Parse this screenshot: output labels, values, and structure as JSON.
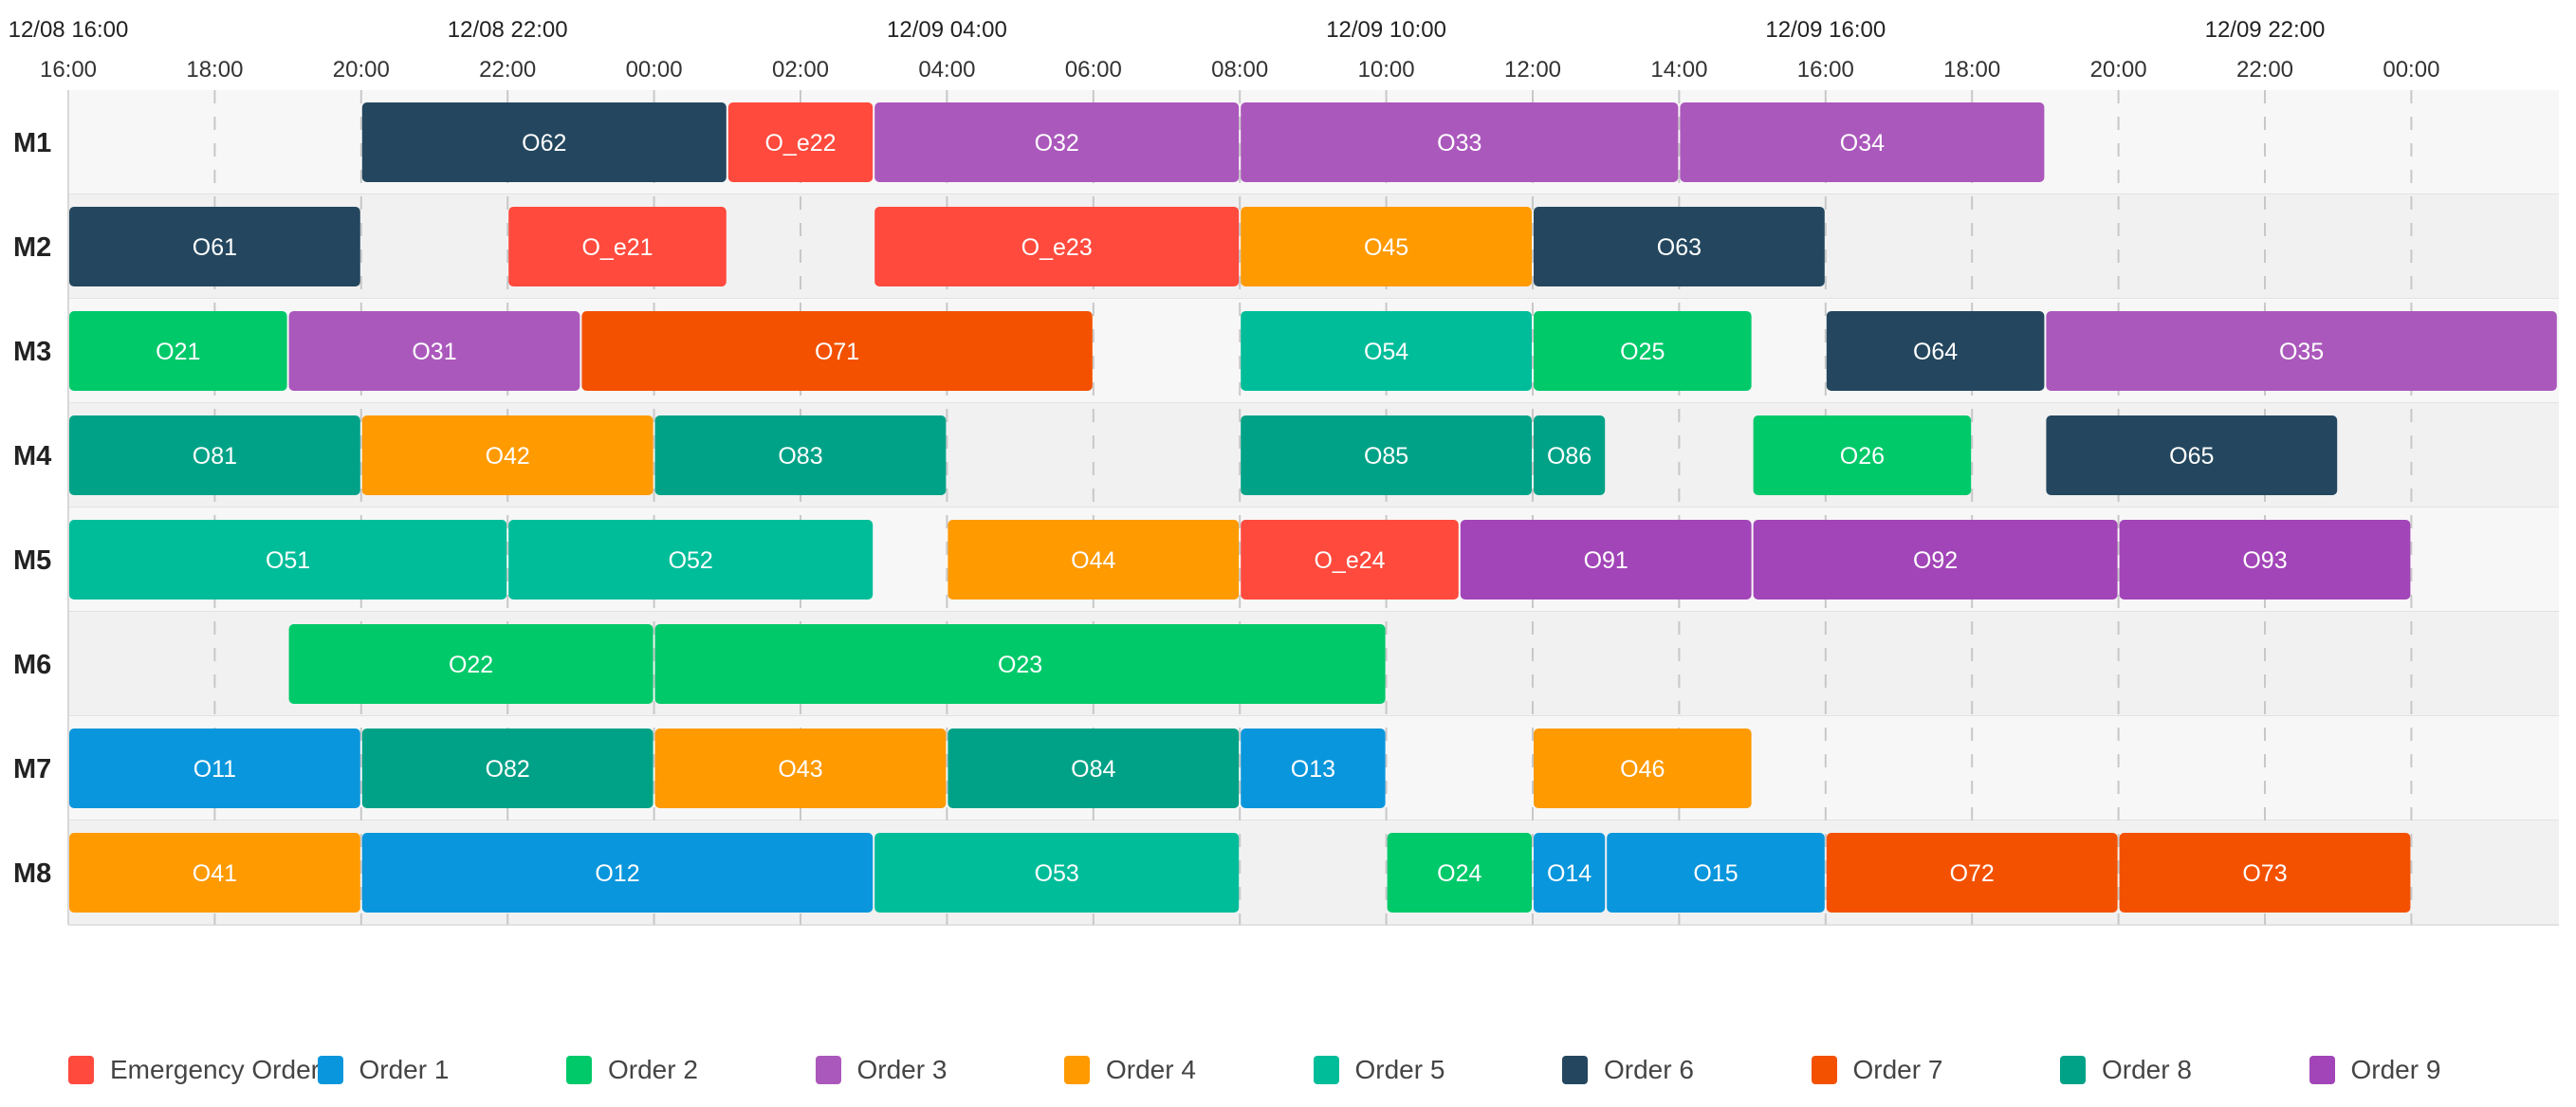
{
  "chart_data": {
    "type": "gantt",
    "time_axis": {
      "start": "12/08 16:00",
      "end": "12/10 01:00",
      "minor_tick_hours": 2,
      "major_tick_hours": 6,
      "major_labels": [
        "12/08 16:00",
        "12/08 22:00",
        "12/09 04:00",
        "12/09 10:00",
        "12/09 16:00",
        "12/09 22:00"
      ],
      "minor_labels": [
        "16:00",
        "18:00",
        "20:00",
        "22:00",
        "00:00",
        "02:00",
        "04:00",
        "06:00",
        "08:00",
        "10:00",
        "12:00",
        "14:00",
        "16:00",
        "18:00",
        "20:00",
        "22:00",
        "00:00"
      ]
    },
    "machines": [
      "M1",
      "M2",
      "M3",
      "M4",
      "M5",
      "M6",
      "M7",
      "M8"
    ],
    "categories": [
      {
        "key": "E",
        "name": "Emergency Order",
        "color": "#ff4a3d"
      },
      {
        "key": "1",
        "name": "Order 1",
        "color": "#0a96dc"
      },
      {
        "key": "2",
        "name": "Order 2",
        "color": "#00c96a"
      },
      {
        "key": "3",
        "name": "Order 3",
        "color": "#ab58bc"
      },
      {
        "key": "4",
        "name": "Order 4",
        "color": "#ff9a00"
      },
      {
        "key": "5",
        "name": "Order 5",
        "color": "#00bd9a"
      },
      {
        "key": "6",
        "name": "Order 6",
        "color": "#24475f"
      },
      {
        "key": "7",
        "name": "Order 7",
        "color": "#f35100"
      },
      {
        "key": "8",
        "name": "Order 8",
        "color": "#00a287"
      },
      {
        "key": "9",
        "name": "Order 9",
        "color": "#a245b8"
      }
    ],
    "tasks": [
      {
        "machine": "M1",
        "label": "O62",
        "order": "6",
        "start": "12/08 20:00",
        "end": "12/09 01:00"
      },
      {
        "machine": "M1",
        "label": "O_e22",
        "order": "E",
        "start": "12/09 01:00",
        "end": "12/09 03:00"
      },
      {
        "machine": "M1",
        "label": "O32",
        "order": "3",
        "start": "12/09 03:00",
        "end": "12/09 08:00"
      },
      {
        "machine": "M1",
        "label": "O33",
        "order": "3",
        "start": "12/09 08:00",
        "end": "12/09 14:00"
      },
      {
        "machine": "M1",
        "label": "O34",
        "order": "3",
        "start": "12/09 14:00",
        "end": "12/09 19:00"
      },
      {
        "machine": "M2",
        "label": "O61",
        "order": "6",
        "start": "12/08 16:00",
        "end": "12/08 20:00"
      },
      {
        "machine": "M2",
        "label": "O_e21",
        "order": "E",
        "start": "12/08 22:00",
        "end": "12/09 01:00"
      },
      {
        "machine": "M2",
        "label": "O_e23",
        "order": "E",
        "start": "12/09 03:00",
        "end": "12/09 08:00"
      },
      {
        "machine": "M2",
        "label": "O45",
        "order": "4",
        "start": "12/09 08:00",
        "end": "12/09 12:00"
      },
      {
        "machine": "M2",
        "label": "O63",
        "order": "6",
        "start": "12/09 12:00",
        "end": "12/09 16:00"
      },
      {
        "machine": "M3",
        "label": "O21",
        "order": "2",
        "start": "12/08 16:00",
        "end": "12/08 19:00"
      },
      {
        "machine": "M3",
        "label": "O31",
        "order": "3",
        "start": "12/08 19:00",
        "end": "12/08 23:00"
      },
      {
        "machine": "M3",
        "label": "O71",
        "order": "7",
        "start": "12/08 23:00",
        "end": "12/09 06:00"
      },
      {
        "machine": "M3",
        "label": "O54",
        "order": "5",
        "start": "12/09 08:00",
        "end": "12/09 12:00"
      },
      {
        "machine": "M3",
        "label": "O25",
        "order": "2",
        "start": "12/09 12:00",
        "end": "12/09 15:00"
      },
      {
        "machine": "M3",
        "label": "O64",
        "order": "6",
        "start": "12/09 16:00",
        "end": "12/09 19:00"
      },
      {
        "machine": "M3",
        "label": "O35",
        "order": "3",
        "start": "12/09 19:00",
        "end": "12/10 02:00"
      },
      {
        "machine": "M4",
        "label": "O81",
        "order": "8",
        "start": "12/08 16:00",
        "end": "12/08 20:00"
      },
      {
        "machine": "M4",
        "label": "O42",
        "order": "4",
        "start": "12/08 20:00",
        "end": "12/09 00:00"
      },
      {
        "machine": "M4",
        "label": "O83",
        "order": "8",
        "start": "12/09 00:00",
        "end": "12/09 04:00"
      },
      {
        "machine": "M4",
        "label": "O85",
        "order": "8",
        "start": "12/09 08:00",
        "end": "12/09 12:00"
      },
      {
        "machine": "M4",
        "label": "O86",
        "order": "8",
        "start": "12/09 12:00",
        "end": "12/09 13:00"
      },
      {
        "machine": "M4",
        "label": "O26",
        "order": "2",
        "start": "12/09 15:00",
        "end": "12/09 18:00"
      },
      {
        "machine": "M4",
        "label": "O65",
        "order": "6",
        "start": "12/09 19:00",
        "end": "12/09 23:00"
      },
      {
        "machine": "M5",
        "label": "O51",
        "order": "5",
        "start": "12/08 16:00",
        "end": "12/08 22:00"
      },
      {
        "machine": "M5",
        "label": "O52",
        "order": "5",
        "start": "12/08 22:00",
        "end": "12/09 03:00"
      },
      {
        "machine": "M5",
        "label": "O44",
        "order": "4",
        "start": "12/09 04:00",
        "end": "12/09 08:00"
      },
      {
        "machine": "M5",
        "label": "O_e24",
        "order": "E",
        "start": "12/09 08:00",
        "end": "12/09 11:00"
      },
      {
        "machine": "M5",
        "label": "O91",
        "order": "9",
        "start": "12/09 11:00",
        "end": "12/09 15:00"
      },
      {
        "machine": "M5",
        "label": "O92",
        "order": "9",
        "start": "12/09 15:00",
        "end": "12/09 20:00"
      },
      {
        "machine": "M5",
        "label": "O93",
        "order": "9",
        "start": "12/09 20:00",
        "end": "12/10 00:00"
      },
      {
        "machine": "M6",
        "label": "O22",
        "order": "2",
        "start": "12/08 19:00",
        "end": "12/09 00:00"
      },
      {
        "machine": "M6",
        "label": "O23",
        "order": "2",
        "start": "12/09 00:00",
        "end": "12/09 10:00"
      },
      {
        "machine": "M7",
        "label": "O11",
        "order": "1",
        "start": "12/08 16:00",
        "end": "12/08 20:00"
      },
      {
        "machine": "M7",
        "label": "O82",
        "order": "8",
        "start": "12/08 20:00",
        "end": "12/09 00:00"
      },
      {
        "machine": "M7",
        "label": "O43",
        "order": "4",
        "start": "12/09 00:00",
        "end": "12/09 04:00"
      },
      {
        "machine": "M7",
        "label": "O84",
        "order": "8",
        "start": "12/09 04:00",
        "end": "12/09 08:00"
      },
      {
        "machine": "M7",
        "label": "O13",
        "order": "1",
        "start": "12/09 08:00",
        "end": "12/09 10:00"
      },
      {
        "machine": "M7",
        "label": "O46",
        "order": "4",
        "start": "12/09 12:00",
        "end": "12/09 15:00"
      },
      {
        "machine": "M8",
        "label": "O41",
        "order": "4",
        "start": "12/08 16:00",
        "end": "12/08 20:00"
      },
      {
        "machine": "M8",
        "label": "O12",
        "order": "1",
        "start": "12/08 20:00",
        "end": "12/09 03:00"
      },
      {
        "machine": "M8",
        "label": "O53",
        "order": "5",
        "start": "12/09 03:00",
        "end": "12/09 08:00"
      },
      {
        "machine": "M8",
        "label": "O24",
        "order": "2",
        "start": "12/09 10:00",
        "end": "12/09 12:00"
      },
      {
        "machine": "M8",
        "label": "O14",
        "order": "1",
        "start": "12/09 12:00",
        "end": "12/09 13:00"
      },
      {
        "machine": "M8",
        "label": "O15",
        "order": "1",
        "start": "12/09 13:00",
        "end": "12/09 16:00"
      },
      {
        "machine": "M8",
        "label": "O72",
        "order": "7",
        "start": "12/09 16:00",
        "end": "12/09 20:00"
      },
      {
        "machine": "M8",
        "label": "O73",
        "order": "7",
        "start": "12/09 20:00",
        "end": "12/10 00:00"
      }
    ],
    "grid": true,
    "legend_position": "bottom"
  }
}
